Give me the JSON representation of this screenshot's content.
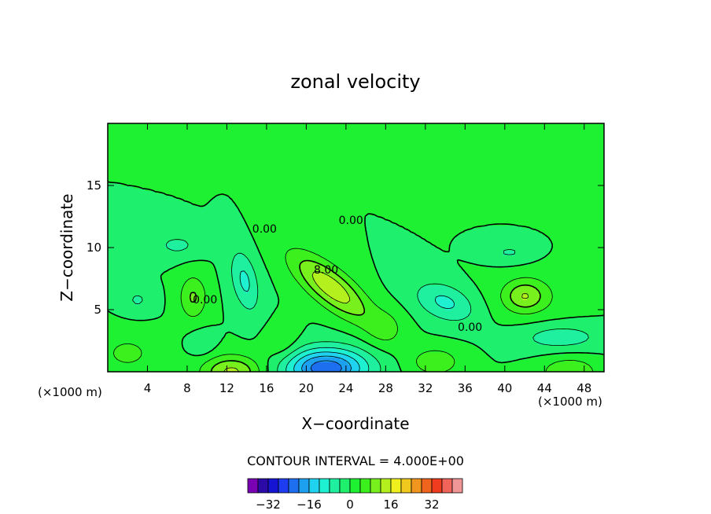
{
  "chart_data": {
    "type": "heatmap",
    "title": "zonal velocity",
    "xlabel": "X−coordinate",
    "ylabel": "Z−coordinate",
    "x_unit_left": "(×1000 m)",
    "x_unit_right": "(×1000 m)",
    "xlim": [
      0,
      50
    ],
    "ylim": [
      0,
      20
    ],
    "xticks": [
      4,
      8,
      12,
      16,
      20,
      24,
      28,
      32,
      36,
      40,
      44,
      48
    ],
    "yticks": [
      5,
      10,
      15
    ],
    "contour_interval_text": "CONTOUR INTERVAL = 4.000E+00",
    "contour_labels": [
      {
        "text": "0.00",
        "x": 15.8,
        "y": 11.2
      },
      {
        "text": "0.00",
        "x": 24.5,
        "y": 11.9
      },
      {
        "text": "8.00",
        "x": 22.0,
        "y": 7.9
      },
      {
        "text": "0.00",
        "x": 9.8,
        "y": 5.5
      },
      {
        "text": "0.00",
        "x": 36.5,
        "y": 3.3
      }
    ],
    "colorbar": {
      "levels": [
        -36,
        -32,
        -28,
        -24,
        -20,
        -16,
        -12,
        -8,
        -4,
        0,
        4,
        8,
        12,
        16,
        20,
        24,
        28,
        32,
        36
      ],
      "tick_labels": [
        "−32",
        "−16",
        "0",
        "16",
        "32"
      ],
      "tick_values": [
        -32,
        -16,
        0,
        16,
        32
      ],
      "colors": [
        "#7a00b4",
        "#2c0aa8",
        "#1414d2",
        "#1e3cf0",
        "#1e6ef0",
        "#1ea0f0",
        "#1ed2f0",
        "#1ef0d2",
        "#1ef0a0",
        "#1ef06e",
        "#1ef032",
        "#3cf01e",
        "#78f01e",
        "#b4f01e",
        "#f0f01e",
        "#f0c81e",
        "#f0961e",
        "#f0641e",
        "#f03c1e",
        "#f0645a",
        "#f09696"
      ]
    },
    "field": {
      "background_level": 0,
      "features": [
        {
          "kind": "positive",
          "x": 22.5,
          "y": 6.8,
          "amplitude": 14,
          "note": "jet core"
        },
        {
          "kind": "negative",
          "x": 22,
          "y": 0.5,
          "amplitude": -22
        },
        {
          "kind": "positive",
          "x": 12.5,
          "y": 0.2,
          "amplitude": 13
        },
        {
          "kind": "negative",
          "x": 13.8,
          "y": 7.5,
          "amplitude": -8
        },
        {
          "kind": "positive",
          "x": 8.5,
          "y": 6.0,
          "amplitude": 8
        },
        {
          "kind": "negative",
          "x": 34,
          "y": 5.5,
          "amplitude": -8
        },
        {
          "kind": "positive",
          "x": 42,
          "y": 6.0,
          "amplitude": 9
        },
        {
          "kind": "negative",
          "x": 45,
          "y": 3,
          "amplitude": -6
        },
        {
          "kind": "positive",
          "x": 46.5,
          "y": 0.2,
          "amplitude": 7
        },
        {
          "kind": "positive",
          "x": 33,
          "y": 1.0,
          "amplitude": 7
        },
        {
          "kind": "negative",
          "x": 7,
          "y": 10.3,
          "amplitude": -5
        },
        {
          "kind": "negative",
          "x": 40,
          "y": 9.7,
          "amplitude": -5
        },
        {
          "kind": "negative",
          "x": 3,
          "y": 5.8,
          "amplitude": -4
        }
      ]
    }
  }
}
